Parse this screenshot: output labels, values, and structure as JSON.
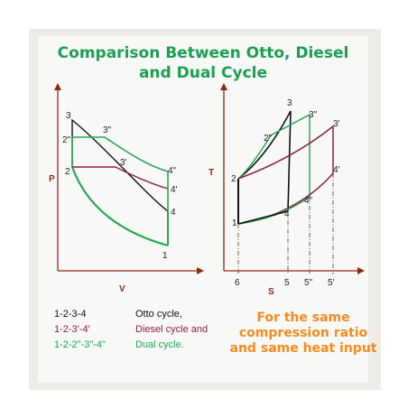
{
  "title": {
    "line1": "Comparison Between Otto, Diesel",
    "line2": "and Dual Cycle"
  },
  "pv_diagram": {
    "x_axis_label": "V",
    "y_axis_label": "P",
    "points": {
      "p1": "1",
      "p2": "2",
      "p3": "3",
      "p4": "4",
      "p3_diesel": "3'",
      "p4_diesel": "4'",
      "p2_dual": "2\"",
      "p3_dual": "3\"",
      "p4_dual": "4\""
    }
  },
  "ts_diagram": {
    "x_axis_label": "S",
    "y_axis_label": "T",
    "points": {
      "p1": "1",
      "p2": "2",
      "p3": "3",
      "p4": "4",
      "p3_diesel": "3'",
      "p4_diesel": "4'",
      "p2_dual": "2\"",
      "p3_dual": "3\"",
      "p4_dual": "4\""
    },
    "s_ticks": [
      "6",
      "5",
      "5\"",
      "5'"
    ]
  },
  "legend": {
    "otto": {
      "path": "1-2-3-4",
      "name": "Otto cycle,",
      "color": "#111111"
    },
    "diesel": {
      "path": "1-2-3'-4'",
      "name": "Diesel cycle and",
      "color": "#8b1e3f"
    },
    "dual": {
      "path": "1-2-2\"-3\"-4\"",
      "name": "Dual cycle.",
      "color": "#1aa85a"
    }
  },
  "note": {
    "line1": "For the same",
    "line2": "compression ratio",
    "line3": "and same heat input",
    "color": "#f58a1f"
  },
  "colors": {
    "otto": "#111111",
    "diesel": "#8b2040",
    "dual": "#27a852",
    "title": "#1aa050",
    "axis": "#8b2a14",
    "panel_bg": "#f8f8f6",
    "frame_bg": "#ecebe7"
  }
}
